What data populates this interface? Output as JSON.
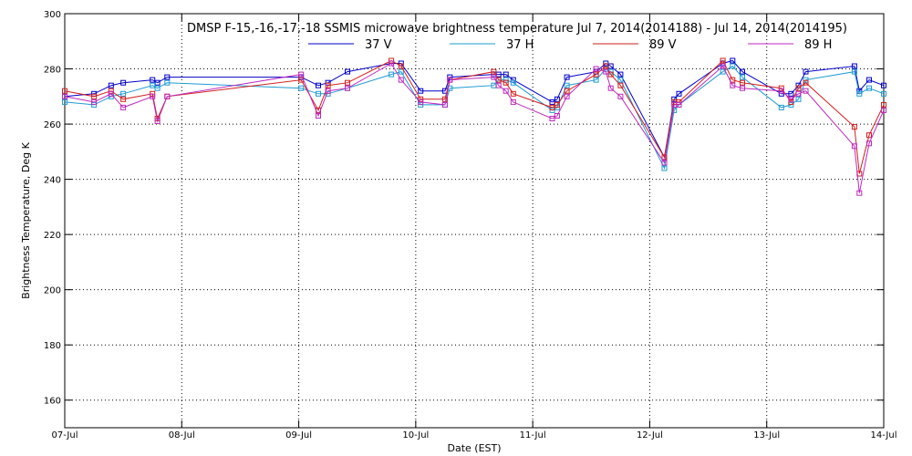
{
  "chart_data": {
    "type": "line",
    "title": "DMSP F-15,-16,-17,-18 SSMIS microwave brightness temperature Jul  7, 2014(2014188) - Jul 14, 2014(2014195)",
    "xlabel": "Date (EST)",
    "ylabel": "Brightness Temperature, Deg K",
    "xlim": [
      "2014-07-07",
      "2014-07-14"
    ],
    "ylim": [
      150,
      300
    ],
    "x_ticks": [
      "07-Jul",
      "08-Jul",
      "09-Jul",
      "10-Jul",
      "11-Jul",
      "12-Jul",
      "13-Jul",
      "14-Jul"
    ],
    "y_ticks": [
      160,
      180,
      200,
      220,
      240,
      260,
      280,
      300
    ],
    "grid": true,
    "legend_position": "top",
    "series": [
      {
        "name": "37 V",
        "color": "#0000c8",
        "x": [
          "2014-07-07 00:00",
          "2014-07-07 06:00",
          "2014-07-07 09:30",
          "2014-07-07 12:00",
          "2014-07-07 18:00",
          "2014-07-07 19:00",
          "2014-07-07 21:00",
          "2014-07-09 00:30",
          "2014-07-09 04:00",
          "2014-07-09 06:00",
          "2014-07-09 10:00",
          "2014-07-09 19:00",
          "2014-07-09 21:00",
          "2014-07-10 01:00",
          "2014-07-10 06:00",
          "2014-07-10 07:00",
          "2014-07-10 16:00",
          "2014-07-10 17:00",
          "2014-07-10 18:30",
          "2014-07-10 20:00",
          "2014-07-11 04:00",
          "2014-07-11 05:00",
          "2014-07-11 07:00",
          "2014-07-11 13:00",
          "2014-07-11 15:00",
          "2014-07-11 16:00",
          "2014-07-11 18:00",
          "2014-07-12 03:00",
          "2014-07-12 05:00",
          "2014-07-12 06:00",
          "2014-07-12 15:00",
          "2014-07-12 17:00",
          "2014-07-12 19:00",
          "2014-07-13 03:00",
          "2014-07-13 05:00",
          "2014-07-13 06:30",
          "2014-07-13 08:00",
          "2014-07-13 18:00",
          "2014-07-13 19:00",
          "2014-07-13 21:00",
          "2014-07-14 00:00"
        ],
        "values": [
          270,
          271,
          274,
          275,
          276,
          275,
          277,
          277,
          274,
          275,
          279,
          282,
          282,
          272,
          272,
          277,
          278,
          278,
          278,
          276,
          268,
          269,
          277,
          279,
          282,
          281,
          278,
          248,
          269,
          271,
          282,
          283,
          279,
          271,
          271,
          274,
          279,
          281,
          272,
          276,
          274
        ]
      },
      {
        "name": "37 H",
        "color": "#1e9bd2",
        "x": [
          "2014-07-07 00:00",
          "2014-07-07 06:00",
          "2014-07-07 09:30",
          "2014-07-07 12:00",
          "2014-07-07 18:00",
          "2014-07-07 19:00",
          "2014-07-07 21:00",
          "2014-07-09 00:30",
          "2014-07-09 04:00",
          "2014-07-09 06:00",
          "2014-07-09 10:00",
          "2014-07-09 19:00",
          "2014-07-09 21:00",
          "2014-07-10 01:00",
          "2014-07-10 06:00",
          "2014-07-10 07:00",
          "2014-07-10 16:00",
          "2014-07-10 17:00",
          "2014-07-10 18:30",
          "2014-07-10 20:00",
          "2014-07-11 04:00",
          "2014-07-11 05:00",
          "2014-07-11 07:00",
          "2014-07-11 13:00",
          "2014-07-11 15:00",
          "2014-07-11 16:00",
          "2014-07-11 18:00",
          "2014-07-12 03:00",
          "2014-07-12 05:00",
          "2014-07-12 06:00",
          "2014-07-12 15:00",
          "2014-07-12 17:00",
          "2014-07-12 19:00",
          "2014-07-13 03:00",
          "2014-07-13 05:00",
          "2014-07-13 06:30",
          "2014-07-13 08:00",
          "2014-07-13 18:00",
          "2014-07-13 19:00",
          "2014-07-13 21:00",
          "2014-07-14 00:00"
        ],
        "values": [
          268,
          267,
          270,
          271,
          274,
          273,
          275,
          273,
          271,
          271,
          273,
          278,
          279,
          267,
          267,
          273,
          274,
          276,
          276,
          275,
          265,
          266,
          274,
          276,
          280,
          279,
          276,
          244,
          265,
          267,
          279,
          281,
          277,
          266,
          267,
          269,
          276,
          279,
          271,
          273,
          271
        ]
      },
      {
        "name": "89 V",
        "color": "#d21e1e",
        "x": [
          "2014-07-07 00:00",
          "2014-07-07 06:00",
          "2014-07-07 09:30",
          "2014-07-07 12:00",
          "2014-07-07 18:00",
          "2014-07-07 19:00",
          "2014-07-07 21:00",
          "2014-07-09 00:30",
          "2014-07-09 04:00",
          "2014-07-09 06:00",
          "2014-07-09 10:00",
          "2014-07-09 19:00",
          "2014-07-09 21:00",
          "2014-07-10 01:00",
          "2014-07-10 06:00",
          "2014-07-10 07:00",
          "2014-07-10 16:00",
          "2014-07-10 17:00",
          "2014-07-10 18:30",
          "2014-07-10 20:00",
          "2014-07-11 04:00",
          "2014-07-11 05:00",
          "2014-07-11 07:00",
          "2014-07-11 13:00",
          "2014-07-11 15:00",
          "2014-07-11 16:00",
          "2014-07-11 18:00",
          "2014-07-12 03:00",
          "2014-07-12 05:00",
          "2014-07-12 06:00",
          "2014-07-12 15:00",
          "2014-07-12 17:00",
          "2014-07-12 19:00",
          "2014-07-13 03:00",
          "2014-07-13 05:00",
          "2014-07-13 06:30",
          "2014-07-13 08:00",
          "2014-07-13 18:00",
          "2014-07-13 19:00",
          "2014-07-13 21:00",
          "2014-07-14 00:00"
        ],
        "values": [
          272,
          270,
          272,
          269,
          271,
          262,
          270,
          276,
          265,
          274,
          275,
          283,
          281,
          269,
          269,
          276,
          279,
          276,
          275,
          271,
          266,
          267,
          272,
          278,
          281,
          278,
          274,
          248,
          268,
          268,
          283,
          276,
          275,
          273,
          268,
          273,
          275,
          259,
          242,
          256,
          267
        ]
      },
      {
        "name": "89 H",
        "color": "#be28be",
        "x": [
          "2014-07-07 00:00",
          "2014-07-07 06:00",
          "2014-07-07 09:30",
          "2014-07-07 12:00",
          "2014-07-07 18:00",
          "2014-07-07 19:00",
          "2014-07-07 21:00",
          "2014-07-09 00:30",
          "2014-07-09 04:00",
          "2014-07-09 06:00",
          "2014-07-09 10:00",
          "2014-07-09 19:00",
          "2014-07-09 21:00",
          "2014-07-10 01:00",
          "2014-07-10 06:00",
          "2014-07-10 07:00",
          "2014-07-10 16:00",
          "2014-07-10 17:00",
          "2014-07-10 18:30",
          "2014-07-10 20:00",
          "2014-07-11 04:00",
          "2014-07-11 05:00",
          "2014-07-11 07:00",
          "2014-07-11 13:00",
          "2014-07-11 15:00",
          "2014-07-11 16:00",
          "2014-07-11 18:00",
          "2014-07-12 03:00",
          "2014-07-12 05:00",
          "2014-07-12 06:00",
          "2014-07-12 15:00",
          "2014-07-12 17:00",
          "2014-07-12 19:00",
          "2014-07-13 03:00",
          "2014-07-13 05:00",
          "2014-07-13 06:30",
          "2014-07-13 08:00",
          "2014-07-13 18:00",
          "2014-07-13 19:00",
          "2014-07-13 21:00",
          "2014-07-14 00:00"
        ],
        "values": [
          270,
          268,
          271,
          266,
          270,
          261,
          270,
          278,
          263,
          272,
          273,
          282,
          276,
          268,
          267,
          276,
          277,
          274,
          272,
          268,
          262,
          263,
          270,
          280,
          279,
          273,
          270,
          246,
          267,
          267,
          281,
          274,
          273,
          272,
          269,
          271,
          272,
          252,
          235,
          253,
          265
        ]
      }
    ]
  }
}
